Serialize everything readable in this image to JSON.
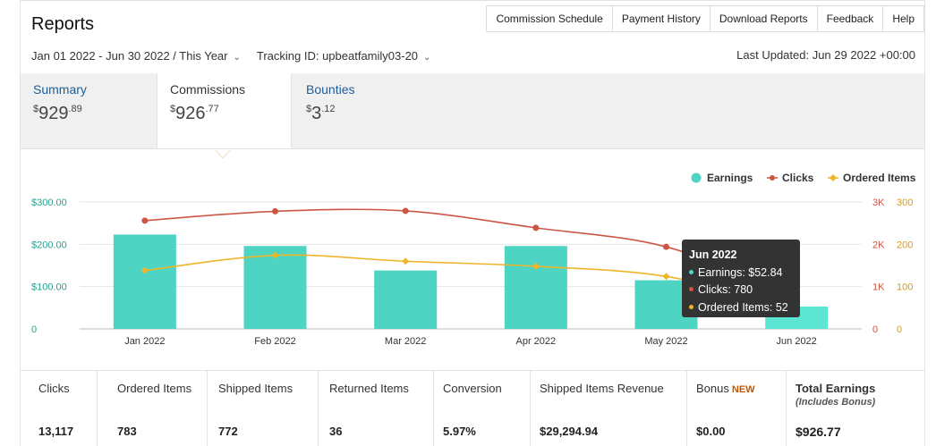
{
  "header": {
    "title": "Reports",
    "nav": [
      "Commission Schedule",
      "Payment History",
      "Download Reports",
      "Feedback",
      "Help"
    ],
    "date_range": "Jan 01 2022 - Jun 30 2022 / This Year",
    "tracking_id": "Tracking ID: upbeatfamily03-20",
    "last_updated": "Last Updated: Jun 29 2022 +00:00"
  },
  "tabs": [
    {
      "label": "Summary",
      "currency": "$",
      "whole": "929",
      "cents": ".89"
    },
    {
      "label": "Commissions",
      "currency": "$",
      "whole": "926",
      "cents": ".77",
      "active": true
    },
    {
      "label": "Bounties",
      "currency": "$",
      "whole": "3",
      "cents": ".12"
    }
  ],
  "chart_data": {
    "type": "bar",
    "categories": [
      "Jan 2022",
      "Feb 2022",
      "Mar 2022",
      "Apr 2022",
      "May 2022",
      "Jun 2022"
    ],
    "series": [
      {
        "name": "Earnings",
        "type": "bar",
        "axis": "left",
        "color": "#4dd4c3",
        "values": [
          223,
          196,
          138,
          196,
          115,
          52.84
        ]
      },
      {
        "name": "Clicks",
        "type": "line",
        "axis": "right-1",
        "color": "#cc5544",
        "values": [
          2560,
          2780,
          2790,
          2390,
          1940,
          780
        ]
      },
      {
        "name": "Ordered Items",
        "type": "line",
        "axis": "right-2",
        "color": "#f0b429",
        "values": [
          138,
          174,
          160,
          148,
          124,
          52
        ]
      }
    ],
    "left_axis": {
      "ticks": [
        "$300.00",
        "$200.00",
        "$100.00",
        "0"
      ],
      "range": [
        0,
        300
      ]
    },
    "right_axis_1": {
      "ticks": [
        "3K",
        "2K",
        "1K",
        "0"
      ],
      "range": [
        0,
        3000
      ]
    },
    "right_axis_2": {
      "ticks": [
        "300",
        "200",
        "100",
        "0"
      ],
      "range": [
        0,
        300
      ]
    },
    "legend": [
      "Earnings",
      "Clicks",
      "Ordered Items"
    ],
    "legend_position": "top-right"
  },
  "tooltip": {
    "title": "Jun 2022",
    "lines": [
      "Earnings: $52.84",
      "Clicks: 780",
      "Ordered Items: 52"
    ]
  },
  "stats": [
    {
      "label": "Clicks",
      "value": "13,117"
    },
    {
      "label": "Ordered Items",
      "value": "783"
    },
    {
      "label": "Shipped Items",
      "value": "772"
    },
    {
      "label": "Returned Items",
      "value": "36"
    },
    {
      "label": "Conversion",
      "value": "5.97%"
    },
    {
      "label": "Shipped Items Revenue",
      "value": "$29,294.94"
    },
    {
      "label": "Bonus",
      "badge": "NEW",
      "value": "$0.00"
    },
    {
      "label": "Total Earnings",
      "sub": "(Includes Bonus)",
      "value": "$926.77"
    }
  ]
}
